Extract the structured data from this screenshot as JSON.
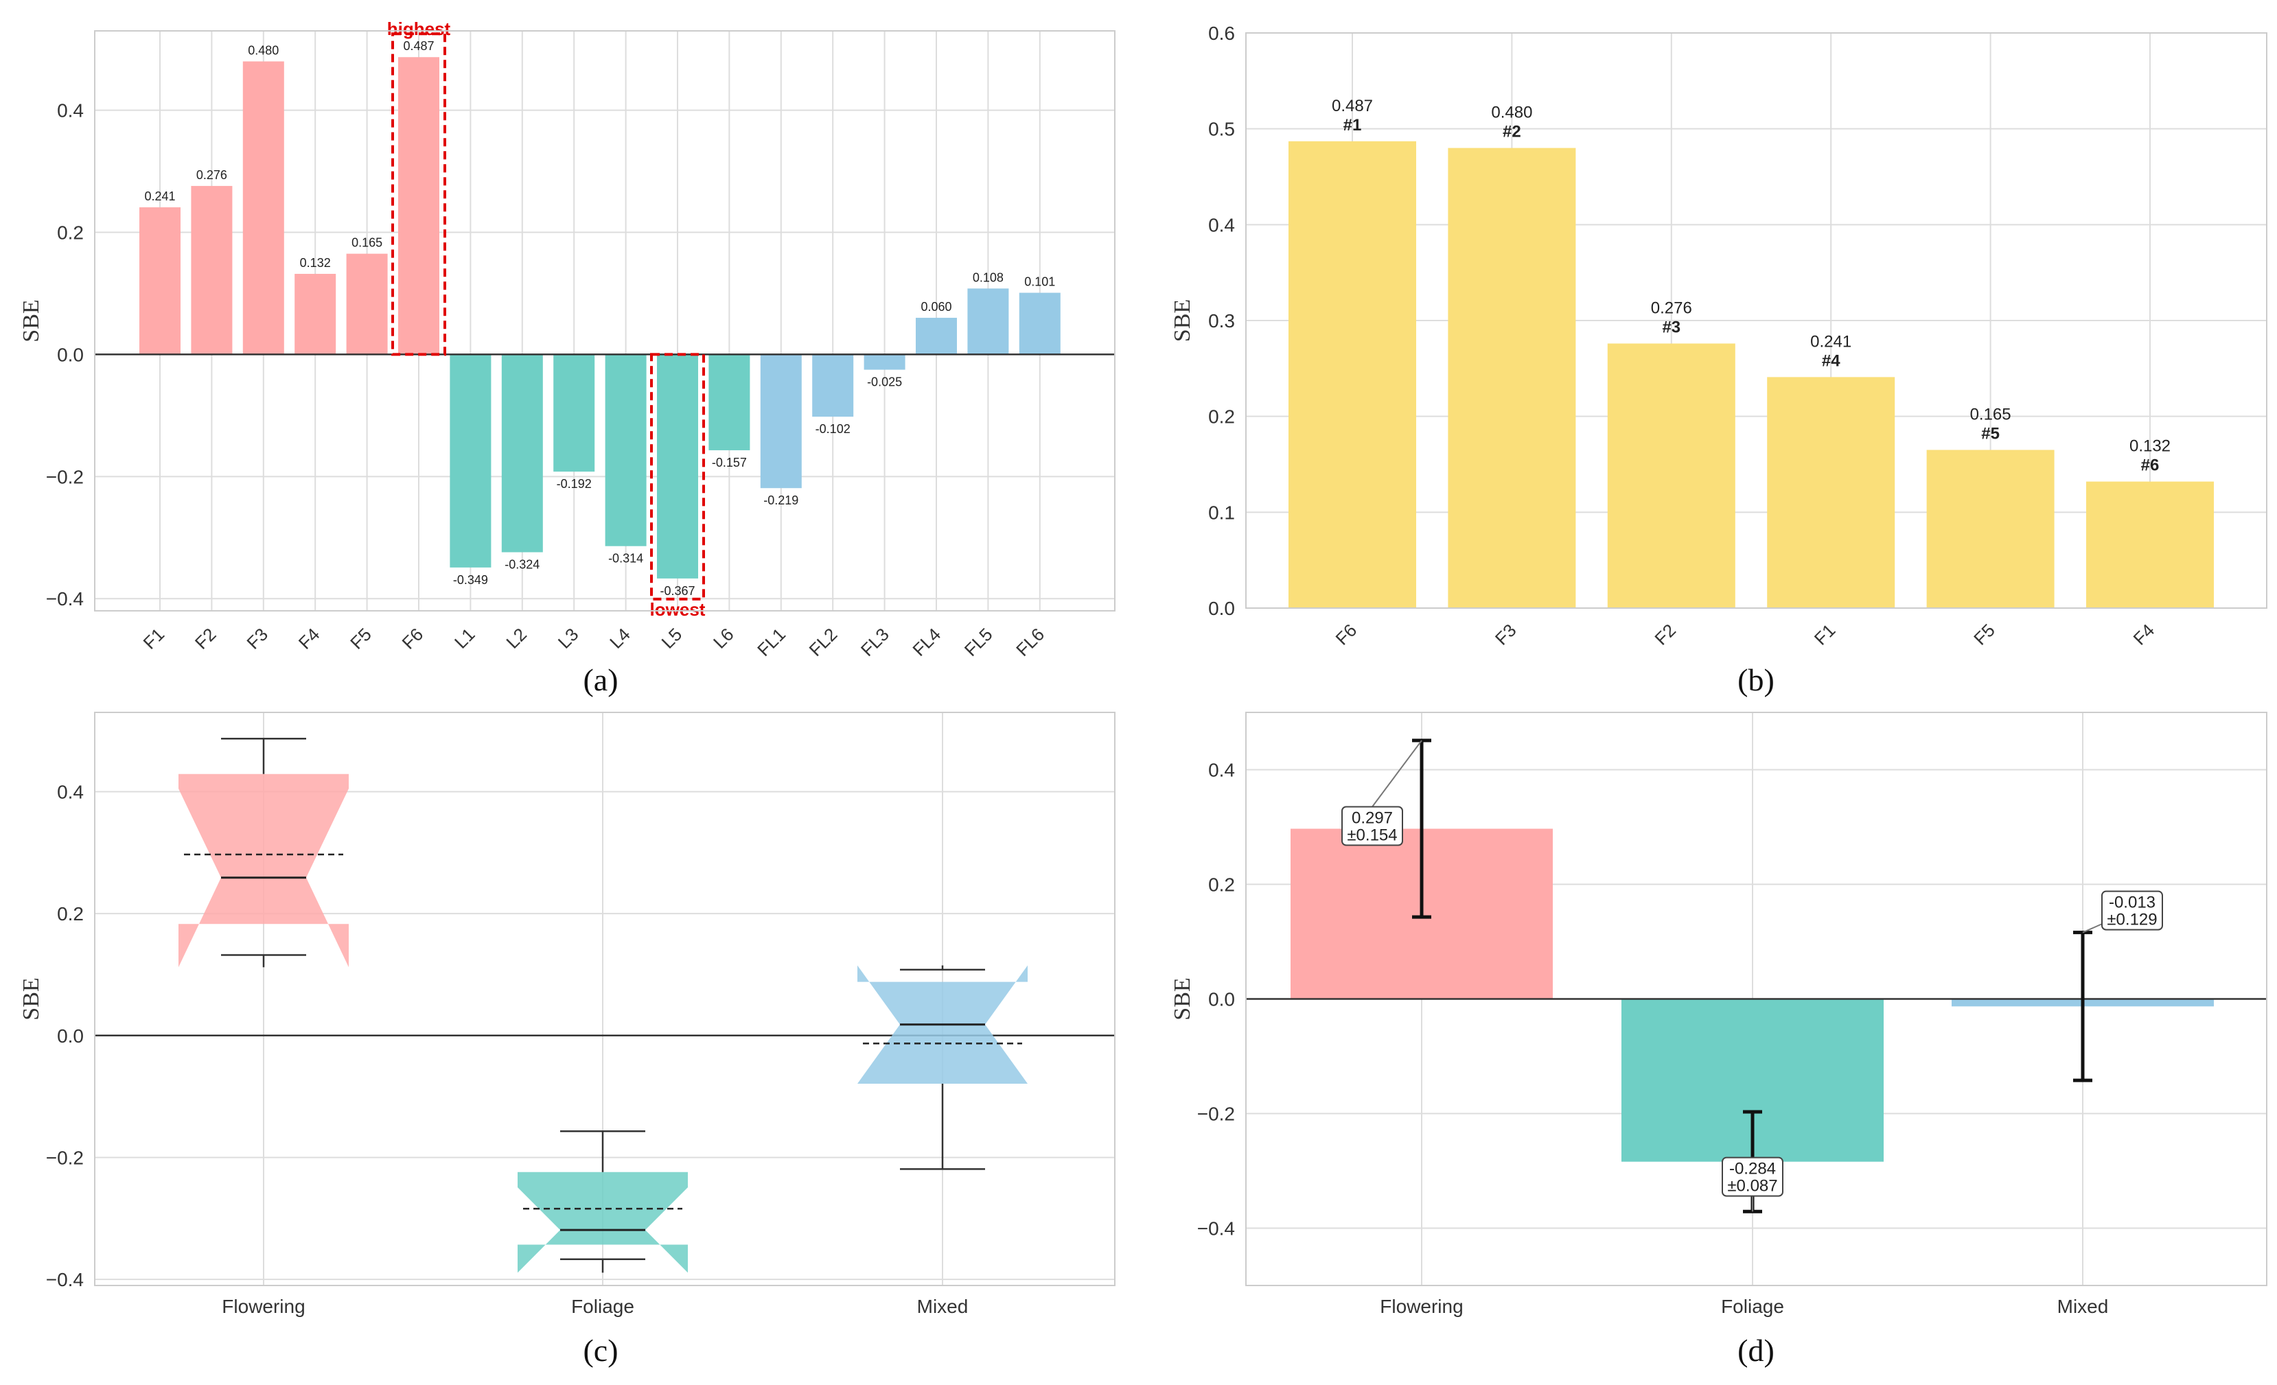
{
  "colors": {
    "flowering": "#ffaaaa",
    "foliage": "#6fcfc5",
    "mixed": "#97cae6",
    "rank_bar": "#fadf7a",
    "highlight": "#e00000"
  },
  "chart_data": [
    {
      "id": "a",
      "type": "bar",
      "caption": "(a)",
      "ylabel": "SBE",
      "ylim": [
        -0.42,
        0.53
      ],
      "yticks": [
        -0.4,
        -0.2,
        0.0,
        0.2,
        0.4
      ],
      "ytick_labels": [
        "−0.4",
        "−0.2",
        "0.0",
        "0.2",
        "0.4"
      ],
      "categories": [
        "F1",
        "F2",
        "F3",
        "F4",
        "F5",
        "F6",
        "L1",
        "L2",
        "L3",
        "L4",
        "L5",
        "L6",
        "FL1",
        "FL2",
        "FL3",
        "FL4",
        "FL5",
        "FL6"
      ],
      "values": [
        0.241,
        0.276,
        0.48,
        0.132,
        0.165,
        0.487,
        -0.349,
        -0.324,
        -0.192,
        -0.314,
        -0.367,
        -0.157,
        -0.219,
        -0.102,
        -0.025,
        0.06,
        0.108,
        0.101
      ],
      "value_labels": [
        "0.241",
        "0.276",
        "0.480",
        "0.132",
        "0.165",
        "0.487",
        "-0.349",
        "-0.324",
        "-0.192",
        "-0.314",
        "-0.367",
        "-0.157",
        "-0.219",
        "-0.102",
        "-0.025",
        "0.060",
        "0.108",
        "0.101"
      ],
      "groups": [
        "flowering",
        "flowering",
        "flowering",
        "flowering",
        "flowering",
        "flowering",
        "foliage",
        "foliage",
        "foliage",
        "foliage",
        "foliage",
        "foliage",
        "mixed",
        "mixed",
        "mixed",
        "mixed",
        "mixed",
        "mixed"
      ],
      "highlight_max_label": "highest",
      "highlight_min_label": "lowest"
    },
    {
      "id": "b",
      "type": "bar",
      "caption": "(b)",
      "ylabel": "SBE",
      "ylim": [
        0,
        0.6
      ],
      "yticks": [
        0.0,
        0.1,
        0.2,
        0.3,
        0.4,
        0.5,
        0.6
      ],
      "ytick_labels": [
        "0.0",
        "0.1",
        "0.2",
        "0.3",
        "0.4",
        "0.5",
        "0.6"
      ],
      "categories": [
        "F6",
        "F3",
        "F2",
        "F1",
        "F5",
        "F4"
      ],
      "values": [
        0.487,
        0.48,
        0.276,
        0.241,
        0.165,
        0.132
      ],
      "value_labels": [
        "0.487",
        "0.480",
        "0.276",
        "0.241",
        "0.165",
        "0.132"
      ],
      "rank_labels": [
        "#1",
        "#2",
        "#3",
        "#4",
        "#5",
        "#6"
      ]
    },
    {
      "id": "c",
      "type": "box",
      "caption": "(c)",
      "ylabel": "SBE",
      "ylim": [
        -0.41,
        0.53
      ],
      "yticks": [
        -0.4,
        -0.2,
        0.0,
        0.2,
        0.4
      ],
      "ytick_labels": [
        "−0.4",
        "−0.2",
        "0.0",
        "0.2",
        "0.4"
      ],
      "categories": [
        "Flowering",
        "Foliage",
        "Mixed"
      ],
      "groups": [
        "flowering",
        "foliage",
        "mixed"
      ],
      "boxes": [
        {
          "min": 0.132,
          "q1": 0.183,
          "median": 0.259,
          "q3": 0.429,
          "max": 0.487,
          "mean": 0.297,
          "notch_low": 0.112,
          "notch_high": 0.405
        },
        {
          "min": -0.367,
          "q1": -0.343,
          "median": -0.319,
          "q3": -0.224,
          "max": -0.157,
          "mean": -0.284,
          "notch_low": -0.389,
          "notch_high": -0.249
        },
        {
          "min": -0.219,
          "q1": -0.079,
          "median": 0.018,
          "q3": 0.088,
          "max": 0.108,
          "mean": -0.013,
          "notch_low": -0.079,
          "notch_high": 0.115
        }
      ]
    },
    {
      "id": "d",
      "type": "bar",
      "caption": "(d)",
      "ylabel": "SBE",
      "ylim": [
        -0.5,
        0.5
      ],
      "yticks": [
        -0.4,
        -0.2,
        0.0,
        0.2,
        0.4
      ],
      "ytick_labels": [
        "−0.4",
        "−0.2",
        "0.0",
        "0.2",
        "0.4"
      ],
      "categories": [
        "Flowering",
        "Foliage",
        "Mixed"
      ],
      "groups": [
        "flowering",
        "foliage",
        "mixed"
      ],
      "means": [
        0.297,
        -0.284,
        -0.013
      ],
      "stds": [
        0.154,
        0.087,
        0.129
      ],
      "mean_labels": [
        "0.297",
        "-0.284",
        "-0.013"
      ],
      "std_labels": [
        "±0.154",
        "±0.087",
        "±0.129"
      ]
    }
  ]
}
